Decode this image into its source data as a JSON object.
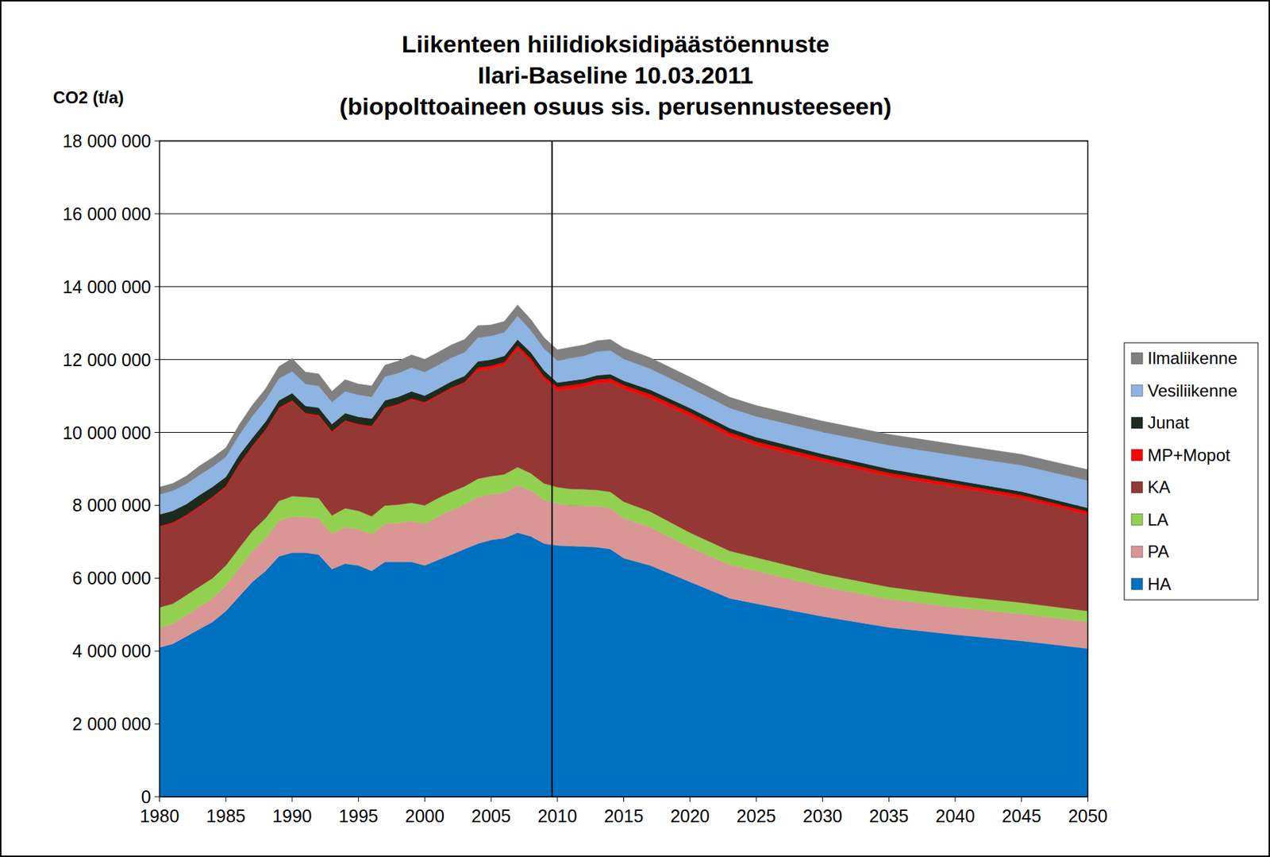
{
  "chart_data": {
    "type": "area",
    "stacked": true,
    "title": [
      "Liikenteen hiilidioksidipäästöennuste",
      "Ilari-Baseline 10.03.2011",
      "(biopolttoaineen osuus sis. perusennusteeseen)"
    ],
    "y_label": "CO2 (t/a)",
    "x": [
      1980,
      1981,
      1982,
      1983,
      1984,
      1985,
      1986,
      1987,
      1988,
      1989,
      1990,
      1991,
      1992,
      1993,
      1994,
      1995,
      1996,
      1997,
      1998,
      1999,
      2000,
      2001,
      2002,
      2003,
      2004,
      2005,
      2006,
      2007,
      2008,
      2009,
      2010,
      2011,
      2012,
      2013,
      2014,
      2015,
      2017,
      2020,
      2023,
      2025,
      2030,
      2035,
      2040,
      2045,
      2050
    ],
    "xlim": [
      1980,
      2050
    ],
    "xticks": [
      1980,
      1985,
      1990,
      1995,
      2000,
      2005,
      2010,
      2015,
      2020,
      2025,
      2030,
      2035,
      2040,
      2045,
      2050
    ],
    "ylim": [
      0,
      18000000
    ],
    "yticks": [
      {
        "value": 0,
        "label": "0"
      },
      {
        "value": 2000000,
        "label": "2 000 000"
      },
      {
        "value": 4000000,
        "label": "4 000 000"
      },
      {
        "value": 6000000,
        "label": "6 000 000"
      },
      {
        "value": 8000000,
        "label": "8 000 000"
      },
      {
        "value": 10000000,
        "label": "10 000 000"
      },
      {
        "value": 12000000,
        "label": "12 000 000"
      },
      {
        "value": 14000000,
        "label": "14 000 000"
      },
      {
        "value": 16000000,
        "label": "16 000 000"
      },
      {
        "value": 18000000,
        "label": "18 000 000"
      }
    ],
    "grid": true,
    "legend": "right",
    "divider_x": 2009.6,
    "series": [
      {
        "name": "HA",
        "color": "#0070c0",
        "values": [
          4100000,
          4200000,
          4400000,
          4600000,
          4800000,
          5100000,
          5500000,
          5900000,
          6200000,
          6600000,
          6700000,
          6700000,
          6650000,
          6250000,
          6400000,
          6350000,
          6200000,
          6450000,
          6450000,
          6450000,
          6350000,
          6500000,
          6650000,
          6800000,
          6950000,
          7050000,
          7100000,
          7250000,
          7150000,
          6950000,
          6900000,
          6880000,
          6870000,
          6850000,
          6800000,
          6550000,
          6350000,
          5900000,
          5450000,
          5300000,
          4950000,
          4650000,
          4450000,
          4280000,
          4070000
        ]
      },
      {
        "name": "PA",
        "color": "#da9694",
        "values": [
          550000,
          550000,
          580000,
          620000,
          650000,
          700000,
          780000,
          850000,
          900000,
          970000,
          1000000,
          980000,
          1000000,
          970000,
          1000000,
          1000000,
          1000000,
          1050000,
          1070000,
          1120000,
          1150000,
          1200000,
          1220000,
          1220000,
          1280000,
          1250000,
          1250000,
          1300000,
          1250000,
          1200000,
          1150000,
          1120000,
          1120000,
          1120000,
          1120000,
          1100000,
          1050000,
          950000,
          920000,
          900000,
          820000,
          780000,
          750000,
          740000,
          730000
        ]
      },
      {
        "name": "LA",
        "color": "#92d050",
        "values": [
          550000,
          550000,
          550000,
          550000,
          550000,
          550000,
          550000,
          550000,
          550000,
          550000,
          550000,
          550000,
          550000,
          500000,
          520000,
          500000,
          500000,
          500000,
          500000,
          500000,
          500000,
          500000,
          500000,
          500000,
          500000,
          500000,
          500000,
          500000,
          480000,
          450000,
          450000,
          450000,
          450000,
          450000,
          450000,
          450000,
          430000,
          400000,
          380000,
          370000,
          350000,
          330000,
          320000,
          310000,
          300000
        ]
      },
      {
        "name": "KA",
        "color": "#953735",
        "values": [
          2200000,
          2200000,
          2170000,
          2180000,
          2200000,
          2150000,
          2270000,
          2300000,
          2400000,
          2530000,
          2600000,
          2270000,
          2250000,
          2280000,
          2380000,
          2350000,
          2450000,
          2650000,
          2730000,
          2830000,
          2800000,
          2800000,
          2830000,
          2830000,
          2970000,
          2950000,
          3000000,
          3250000,
          3070000,
          2850000,
          2650000,
          2750000,
          2810000,
          2930000,
          3010000,
          3100000,
          3120000,
          3200000,
          3150000,
          3080000,
          3080000,
          3040000,
          2980000,
          2870000,
          2650000
        ]
      },
      {
        "name": "MP+Mopot",
        "color": "#ff0000",
        "values": [
          30000,
          30000,
          30000,
          30000,
          30000,
          30000,
          30000,
          30000,
          30000,
          30000,
          30000,
          30000,
          30000,
          30000,
          30000,
          30000,
          30000,
          30000,
          30000,
          30000,
          30000,
          30000,
          30000,
          30000,
          80000,
          80000,
          80000,
          80000,
          80000,
          80000,
          100000,
          100000,
          100000,
          100000,
          100000,
          100000,
          100000,
          100000,
          100000,
          100000,
          100000,
          90000,
          90000,
          80000,
          80000
        ]
      },
      {
        "name": "Junat",
        "color": "#1d2b1d",
        "values": [
          320000,
          320000,
          300000,
          300000,
          280000,
          250000,
          250000,
          220000,
          220000,
          200000,
          200000,
          200000,
          200000,
          200000,
          200000,
          200000,
          200000,
          200000,
          200000,
          200000,
          180000,
          170000,
          170000,
          170000,
          170000,
          170000,
          170000,
          170000,
          170000,
          170000,
          120000,
          120000,
          120000,
          120000,
          120000,
          120000,
          120000,
          120000,
          120000,
          120000,
          110000,
          110000,
          100000,
          100000,
          100000
        ]
      },
      {
        "name": "Vesiliikenne",
        "color": "#8db4e2",
        "values": [
          550000,
          550000,
          550000,
          550000,
          550000,
          550000,
          550000,
          600000,
          600000,
          600000,
          600000,
          600000,
          600000,
          600000,
          600000,
          600000,
          600000,
          650000,
          650000,
          650000,
          650000,
          650000,
          650000,
          650000,
          650000,
          650000,
          650000,
          650000,
          600000,
          600000,
          600000,
          620000,
          630000,
          650000,
          650000,
          600000,
          580000,
          550000,
          550000,
          570000,
          600000,
          650000,
          680000,
          720000,
          750000
        ]
      },
      {
        "name": "Ilmaliikenne",
        "color": "#808080",
        "values": [
          200000,
          200000,
          220000,
          250000,
          250000,
          250000,
          280000,
          300000,
          300000,
          330000,
          350000,
          330000,
          330000,
          300000,
          320000,
          300000,
          300000,
          320000,
          330000,
          350000,
          350000,
          350000,
          350000,
          350000,
          330000,
          300000,
          300000,
          300000,
          300000,
          300000,
          300000,
          300000,
          300000,
          300000,
          300000,
          300000,
          300000,
          300000,
          300000,
          300000,
          300000,
          300000,
          300000,
          300000,
          300000
        ]
      }
    ]
  }
}
